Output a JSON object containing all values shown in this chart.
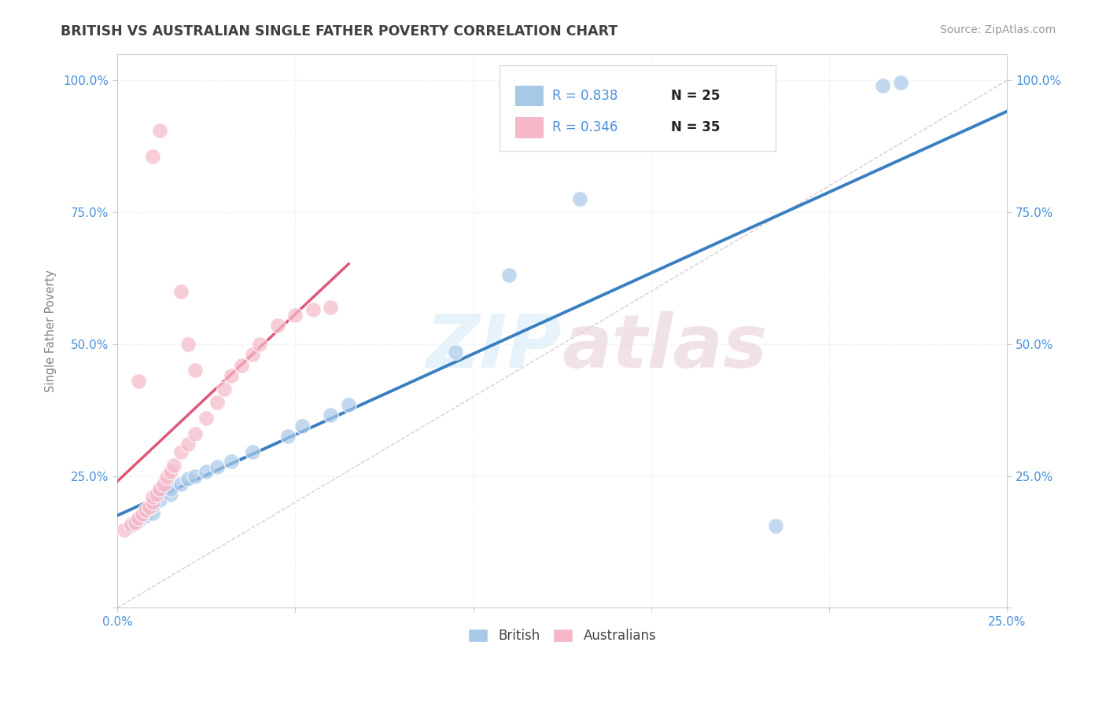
{
  "title": "BRITISH VS AUSTRALIAN SINGLE FATHER POVERTY CORRELATION CHART",
  "source": "Source: ZipAtlas.com",
  "ylabel": "Single Father Poverty",
  "xlim": [
    0.0,
    0.25
  ],
  "ylim": [
    0.0,
    1.05
  ],
  "xticks": [
    0.0,
    0.05,
    0.1,
    0.15,
    0.2,
    0.25
  ],
  "yticks": [
    0.0,
    0.25,
    0.5,
    0.75,
    1.0
  ],
  "xticklabels": [
    "0.0%",
    "",
    "",
    "",
    "",
    "25.0%"
  ],
  "yticklabels": [
    "",
    "25.0%",
    "50.0%",
    "75.0%",
    "100.0%"
  ],
  "right_yticklabels": [
    "",
    "25.0%",
    "50.0%",
    "75.0%",
    "100.0%"
  ],
  "legend_r_british": "R = 0.838",
  "legend_n_british": "N = 25",
  "legend_r_australian": "R = 0.346",
  "legend_n_australian": "N = 35",
  "british_color": "#a8c8e8",
  "australian_color": "#f4b8c8",
  "british_line_color": "#3a7fc1",
  "australian_line_color": "#e05878",
  "ref_line_color": "#cccccc",
  "background_color": "#ffffff",
  "grid_color": "#e8e8e8",
  "title_color": "#404040",
  "axis_label_color": "#808080",
  "tick_label_color": "#4a90d9",
  "stat_text_color": "#4a90d9",
  "watermark_color": "#d0e8f8",
  "british_x": [
    0.005,
    0.008,
    0.01,
    0.01,
    0.012,
    0.015,
    0.015,
    0.018,
    0.02,
    0.02,
    0.022,
    0.025,
    0.03,
    0.035,
    0.04,
    0.05,
    0.055,
    0.06,
    0.065,
    0.08,
    0.1,
    0.12,
    0.18,
    0.215,
    0.22
  ],
  "british_y": [
    0.16,
    0.175,
    0.18,
    0.195,
    0.2,
    0.21,
    0.22,
    0.23,
    0.24,
    0.255,
    0.255,
    0.26,
    0.27,
    0.285,
    0.31,
    0.33,
    0.35,
    0.36,
    0.38,
    0.42,
    0.49,
    0.775,
    0.15,
    0.99,
    1.0
  ],
  "australian_x": [
    0.002,
    0.003,
    0.004,
    0.005,
    0.006,
    0.007,
    0.008,
    0.008,
    0.009,
    0.01,
    0.01,
    0.011,
    0.012,
    0.013,
    0.014,
    0.015,
    0.016,
    0.017,
    0.018,
    0.019,
    0.02,
    0.021,
    0.022,
    0.024,
    0.025,
    0.028,
    0.03,
    0.032,
    0.034,
    0.036,
    0.038,
    0.04,
    0.045,
    0.05,
    0.055
  ],
  "australian_y": [
    0.155,
    0.16,
    0.165,
    0.17,
    0.175,
    0.18,
    0.19,
    0.195,
    0.2,
    0.205,
    0.21,
    0.215,
    0.22,
    0.23,
    0.24,
    0.25,
    0.255,
    0.265,
    0.27,
    0.28,
    0.285,
    0.295,
    0.305,
    0.32,
    0.335,
    0.36,
    0.38,
    0.42,
    0.44,
    0.455,
    0.465,
    0.48,
    0.51,
    0.535,
    0.56
  ]
}
